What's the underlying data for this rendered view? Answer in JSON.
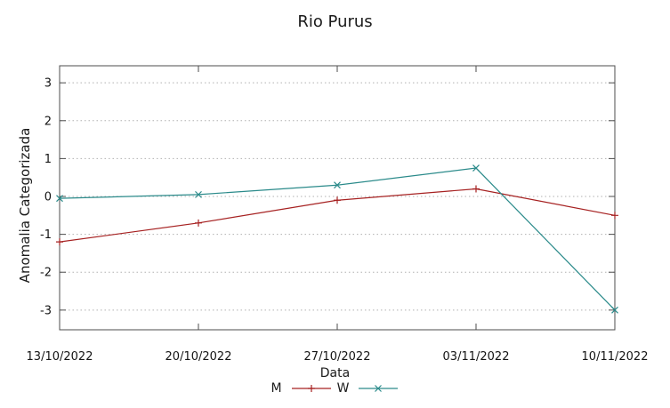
{
  "chart_data": {
    "type": "line",
    "title": "Rio Purus",
    "xlabel": "Data",
    "ylabel": "Anomalia Categorizada",
    "categories": [
      "13/10/2022",
      "20/10/2022",
      "27/10/2022",
      "03/11/2022",
      "10/11/2022"
    ],
    "yticks": [
      3,
      2,
      1,
      0,
      -1,
      -2,
      -3
    ],
    "ylim": [
      -3.52,
      3.45
    ],
    "grid": "horizontal-dotted",
    "legend_position": "bottom-center",
    "series": [
      {
        "name": "M",
        "marker": "plus",
        "color": "#a62121",
        "values": [
          -1.2,
          -0.7,
          -0.1,
          0.2,
          -0.5
        ]
      },
      {
        "name": "W",
        "marker": "cross",
        "color": "#2a8a8a",
        "values": [
          -0.05,
          0.05,
          0.3,
          0.75,
          -3.0
        ]
      }
    ]
  },
  "colors": {
    "background": "#ffffff",
    "border": "#4d4d4d",
    "grid": "#b0b0b0",
    "text": "#141414"
  }
}
